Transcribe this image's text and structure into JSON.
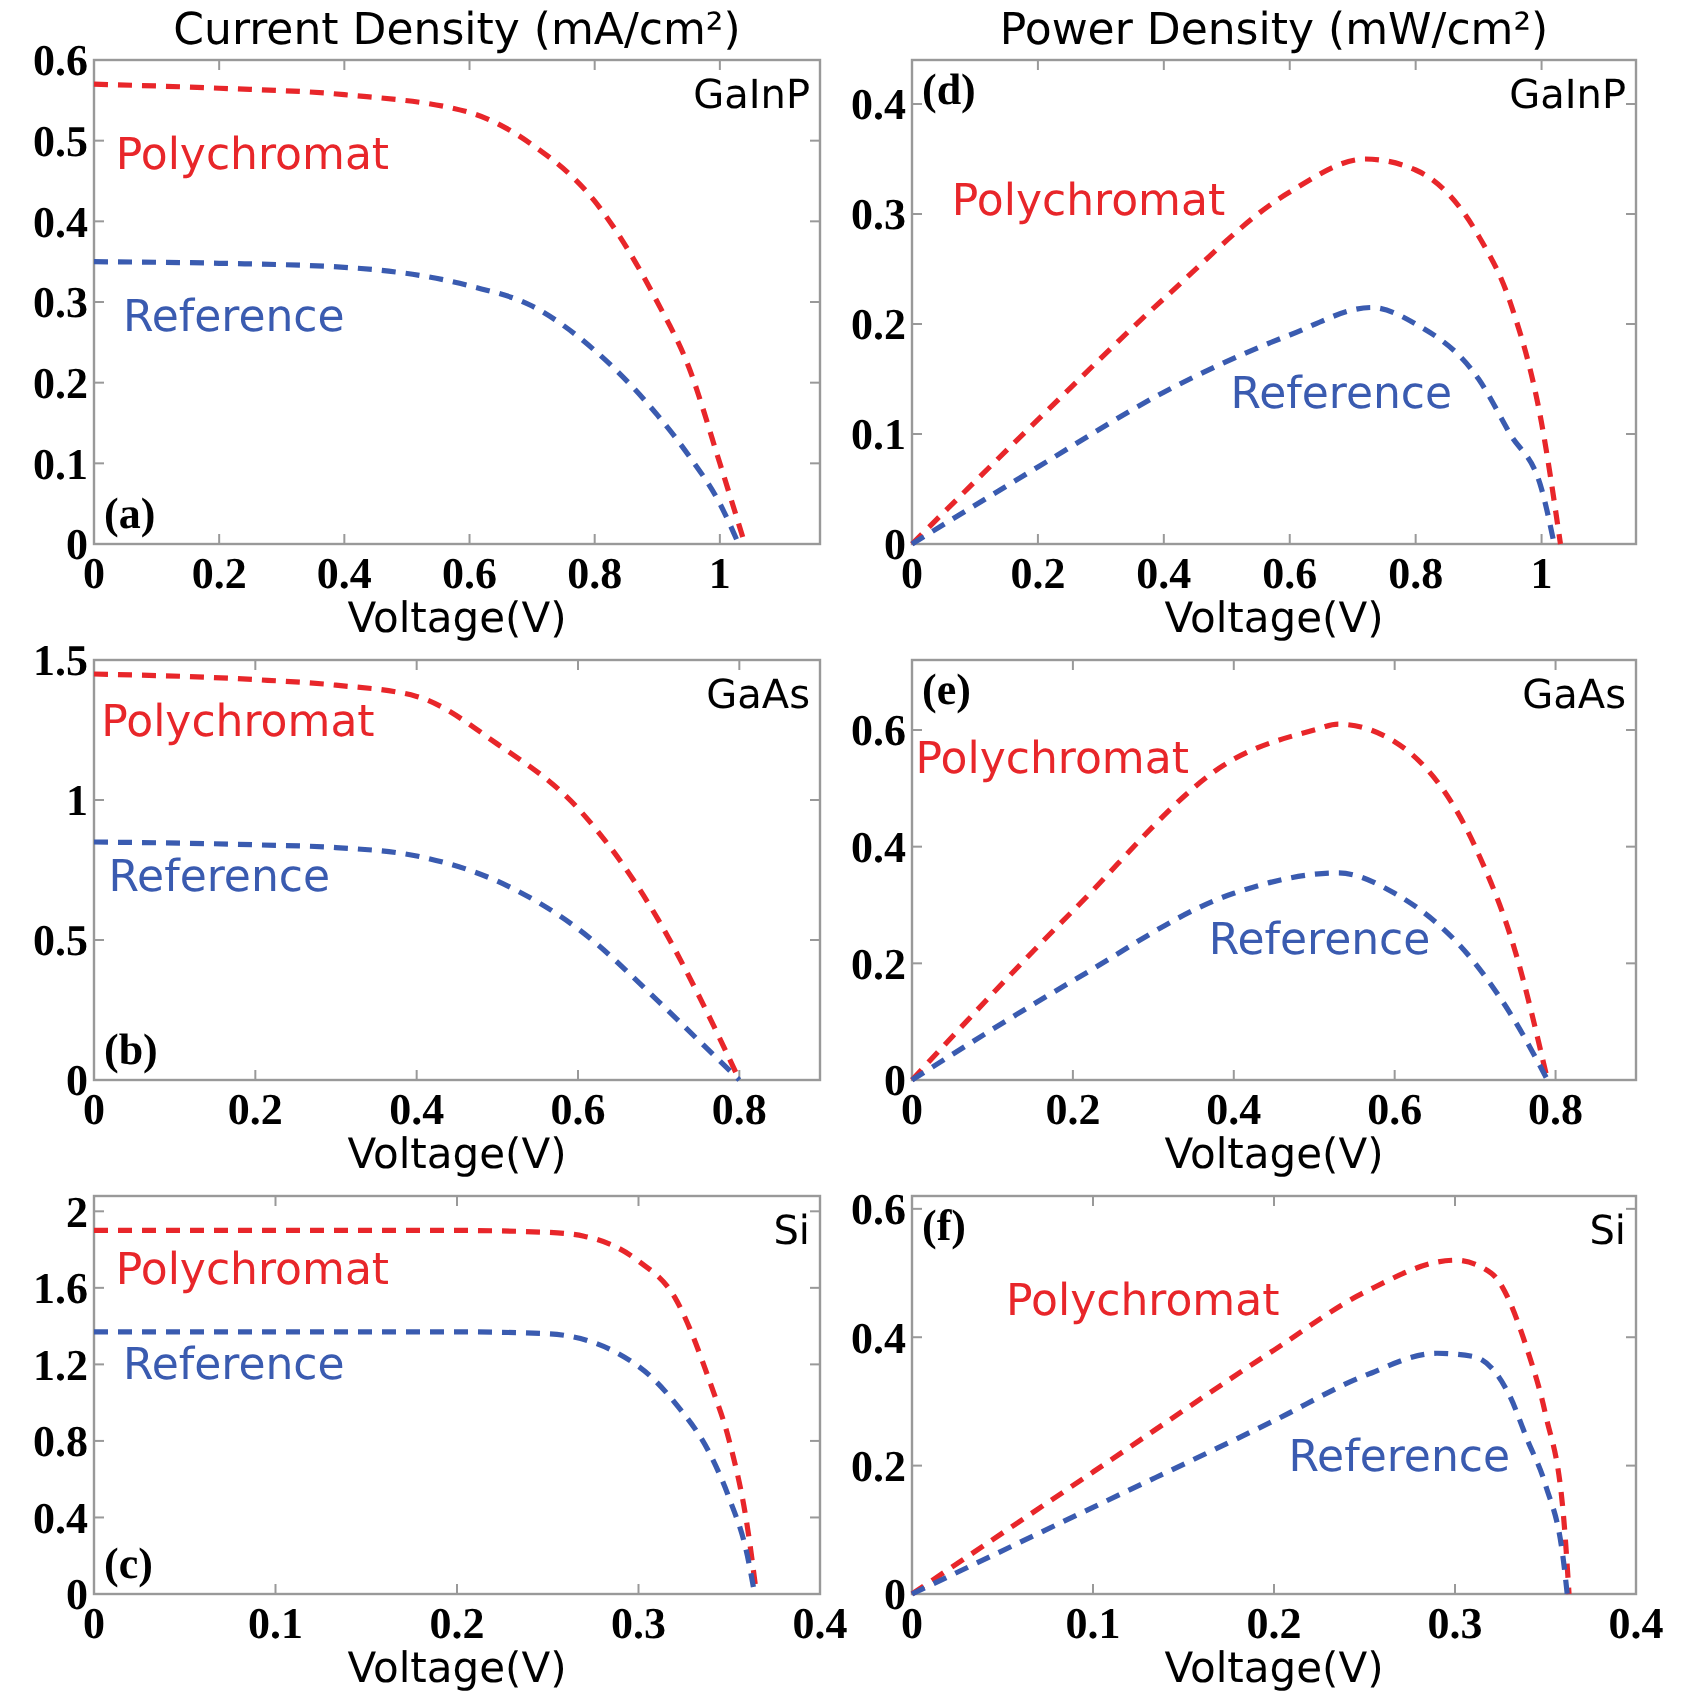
{
  "chart_data": [
    {
      "type": "line",
      "title": "Current Density (mA/cm²)",
      "xlabel": "Voltage(V)",
      "annotations": [
        "GaInP",
        "(a)"
      ],
      "xlim": [
        0,
        1.16
      ],
      "ylim": [
        0,
        0.6
      ],
      "xticks": [
        0,
        0.2,
        0.4,
        0.6,
        0.8,
        1
      ],
      "yticks": [
        0,
        0.1,
        0.2,
        0.3,
        0.4,
        0.5,
        0.6
      ],
      "line_style": "dashed",
      "grid": false,
      "series": [
        {
          "name": "Polychromat",
          "color": "#e8262a",
          "x": [
            0,
            0.2,
            0.4,
            0.6,
            0.7,
            0.8,
            0.9,
            0.95,
            1.0,
            1.04
          ],
          "values": [
            0.57,
            0.565,
            0.557,
            0.535,
            0.495,
            0.425,
            0.3,
            0.22,
            0.1,
            0
          ]
        },
        {
          "name": "Reference",
          "color": "#3a5bb0",
          "x": [
            0,
            0.2,
            0.4,
            0.6,
            0.7,
            0.8,
            0.9,
            0.95,
            1.0,
            1.03
          ],
          "values": [
            0.35,
            0.348,
            0.343,
            0.32,
            0.295,
            0.24,
            0.16,
            0.11,
            0.05,
            0
          ]
        }
      ]
    },
    {
      "type": "line",
      "title": "Power Density (mW/cm²)",
      "xlabel": "Voltage(V)",
      "annotations": [
        "GaInP",
        "(d)"
      ],
      "xlim": [
        0,
        1.15
      ],
      "ylim": [
        0,
        0.44
      ],
      "xticks": [
        0,
        0.2,
        0.4,
        0.6,
        0.8,
        1
      ],
      "yticks": [
        0,
        0.1,
        0.2,
        0.3,
        0.4
      ],
      "line_style": "dashed",
      "grid": false,
      "series": [
        {
          "name": "Polychromat",
          "color": "#e8262a",
          "x": [
            0,
            0.2,
            0.4,
            0.6,
            0.72,
            0.8,
            0.9,
            0.95,
            1.0,
            1.03
          ],
          "values": [
            0,
            0.113,
            0.223,
            0.32,
            0.35,
            0.34,
            0.28,
            0.22,
            0.11,
            0
          ]
        },
        {
          "name": "Reference",
          "color": "#3a5bb0",
          "x": [
            0,
            0.2,
            0.4,
            0.6,
            0.73,
            0.8,
            0.9,
            0.95,
            1.0,
            1.02
          ],
          "values": [
            0,
            0.07,
            0.138,
            0.19,
            0.215,
            0.2,
            0.15,
            0.1,
            0.05,
            0
          ]
        }
      ]
    },
    {
      "type": "line",
      "xlabel": "Voltage(V)",
      "annotations": [
        "GaAs",
        "(b)"
      ],
      "xlim": [
        0,
        0.9
      ],
      "ylim": [
        0,
        1.5
      ],
      "xticks": [
        0,
        0.2,
        0.4,
        0.6,
        0.8
      ],
      "yticks": [
        0,
        0.5,
        1,
        1.5
      ],
      "line_style": "dashed",
      "grid": false,
      "series": [
        {
          "name": "Polychromat",
          "color": "#e8262a",
          "x": [
            0,
            0.2,
            0.3,
            0.4,
            0.5,
            0.6,
            0.7,
            0.75,
            0.8
          ],
          "values": [
            1.45,
            1.43,
            1.41,
            1.37,
            1.2,
            0.97,
            0.57,
            0.3,
            0
          ]
        },
        {
          "name": "Reference",
          "color": "#3a5bb0",
          "x": [
            0,
            0.2,
            0.3,
            0.4,
            0.5,
            0.6,
            0.7,
            0.75,
            0.8
          ],
          "values": [
            0.85,
            0.84,
            0.83,
            0.8,
            0.71,
            0.54,
            0.28,
            0.14,
            0
          ]
        }
      ]
    },
    {
      "type": "line",
      "xlabel": "Voltage(V)",
      "annotations": [
        "GaAs",
        "(e)"
      ],
      "xlim": [
        0,
        0.9
      ],
      "ylim": [
        0,
        0.72
      ],
      "xticks": [
        0,
        0.2,
        0.4,
        0.6,
        0.8
      ],
      "yticks": [
        0,
        0.2,
        0.4,
        0.6
      ],
      "line_style": "dashed",
      "grid": false,
      "series": [
        {
          "name": "Polychromat",
          "color": "#e8262a",
          "x": [
            0,
            0.2,
            0.4,
            0.5,
            0.53,
            0.6,
            0.7,
            0.75,
            0.79
          ],
          "values": [
            0,
            0.29,
            0.55,
            0.6,
            0.61,
            0.58,
            0.4,
            0.22,
            0
          ]
        },
        {
          "name": "Reference",
          "color": "#3a5bb0",
          "x": [
            0,
            0.2,
            0.4,
            0.53,
            0.6,
            0.7,
            0.75,
            0.79
          ],
          "values": [
            0,
            0.17,
            0.32,
            0.355,
            0.32,
            0.2,
            0.1,
            0
          ]
        }
      ]
    },
    {
      "type": "line",
      "xlabel": "Voltage(V)",
      "annotations": [
        "Si",
        "(c)"
      ],
      "xlim": [
        0,
        0.4
      ],
      "ylim": [
        0,
        2.08
      ],
      "xticks": [
        0,
        0.1,
        0.2,
        0.3,
        0.4
      ],
      "yticks": [
        0,
        0.4,
        0.8,
        1.2,
        1.6,
        2
      ],
      "line_style": "dashed",
      "grid": false,
      "series": [
        {
          "name": "Polychromat",
          "color": "#e8262a",
          "x": [
            0,
            0.1,
            0.2,
            0.25,
            0.27,
            0.3,
            0.32,
            0.34,
            0.35,
            0.36,
            0.365
          ],
          "values": [
            1.9,
            1.9,
            1.9,
            1.89,
            1.87,
            1.74,
            1.55,
            1.09,
            0.8,
            0.35,
            0
          ]
        },
        {
          "name": "Reference",
          "color": "#3a5bb0",
          "x": [
            0,
            0.1,
            0.2,
            0.25,
            0.3,
            0.32,
            0.34,
            0.35,
            0.36,
            0.364
          ],
          "values": [
            1.37,
            1.37,
            1.37,
            1.36,
            1.19,
            1.0,
            0.72,
            0.5,
            0.2,
            0
          ]
        }
      ]
    },
    {
      "type": "line",
      "xlabel": "Voltage(V)",
      "annotations": [
        "Si",
        "(f)"
      ],
      "xlim": [
        0,
        0.4
      ],
      "ylim": [
        0,
        0.62
      ],
      "xticks": [
        0,
        0.1,
        0.2,
        0.3,
        0.4
      ],
      "yticks": [
        0,
        0.2,
        0.4,
        0.6
      ],
      "line_style": "dashed",
      "grid": false,
      "series": [
        {
          "name": "Polychromat",
          "color": "#e8262a",
          "x": [
            0,
            0.1,
            0.2,
            0.25,
            0.3,
            0.32,
            0.34,
            0.35,
            0.36,
            0.363
          ],
          "values": [
            0,
            0.19,
            0.38,
            0.47,
            0.52,
            0.5,
            0.38,
            0.28,
            0.12,
            0
          ]
        },
        {
          "name": "Reference",
          "color": "#3a5bb0",
          "x": [
            0,
            0.1,
            0.2,
            0.25,
            0.29,
            0.31,
            0.33,
            0.34,
            0.35,
            0.36,
            0.362
          ],
          "values": [
            0,
            0.135,
            0.27,
            0.34,
            0.375,
            0.37,
            0.31,
            0.24,
            0.17,
            0.05,
            0
          ]
        }
      ]
    }
  ]
}
